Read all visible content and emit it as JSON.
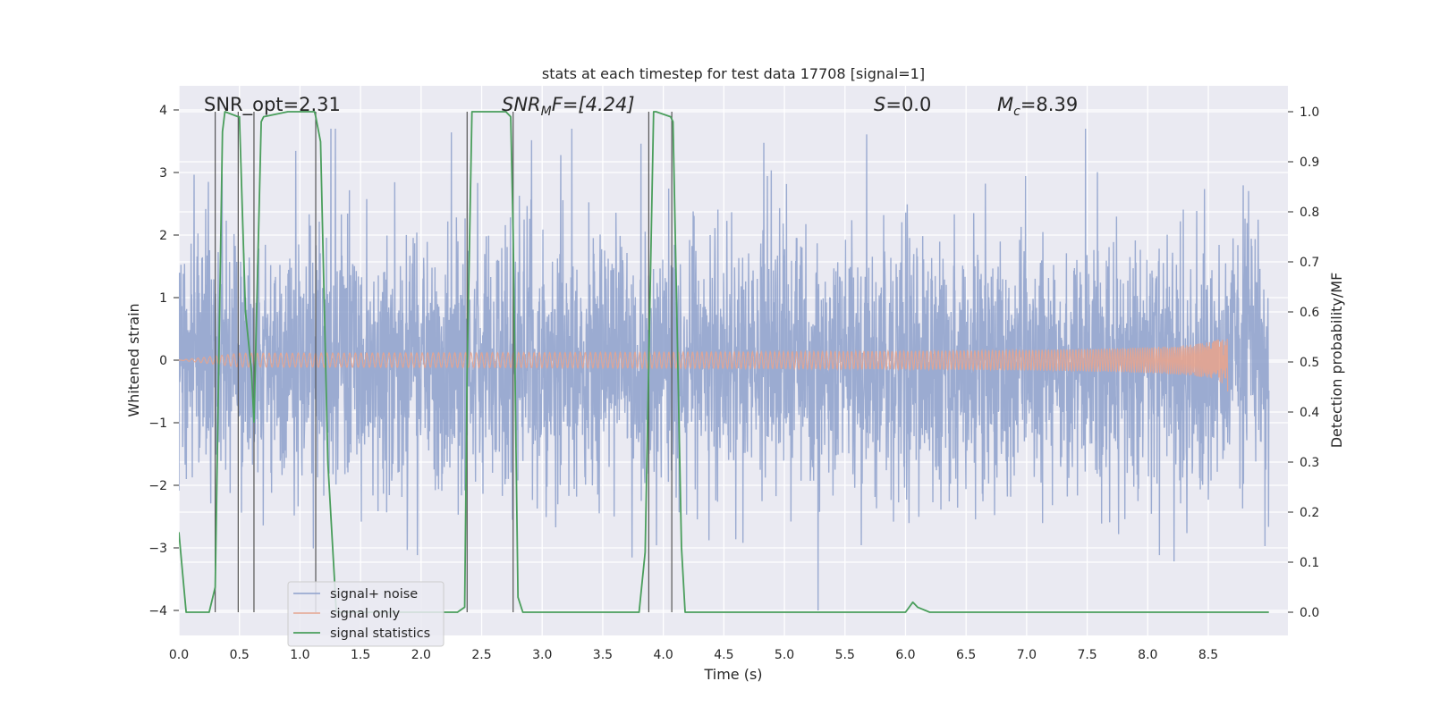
{
  "chart_data": {
    "type": "line",
    "title": "stats at each timestep for test data 17708 [signal=1]",
    "xlabel": "Time (s)",
    "ylabel": "Whitened strain",
    "ylabel_right": "Detection probability/MF",
    "xlim": [
      0,
      9.0
    ],
    "ylim": [
      -4.4,
      4.4
    ],
    "ylim_right": [
      -0.05,
      1.045
    ],
    "x_ticks": [
      "0.0",
      "0.5",
      "1.0",
      "1.5",
      "2.0",
      "2.5",
      "3.0",
      "3.5",
      "4.0",
      "4.5",
      "5.0",
      "5.5",
      "6.0",
      "6.5",
      "7.0",
      "7.5",
      "8.0",
      "8.5"
    ],
    "y_ticks": [
      "−4",
      "−3",
      "−2",
      "−1",
      "0",
      "1",
      "2",
      "3",
      "4"
    ],
    "y_ticks_right": [
      "0.0",
      "0.1",
      "0.2",
      "0.3",
      "0.4",
      "0.5",
      "0.6",
      "0.7",
      "0.8",
      "0.9",
      "1.0"
    ],
    "grid": true,
    "legend_position": "lower-left",
    "annotations": {
      "snr_opt": "SNR_opt=2.31",
      "snr_mf_base": "SNR",
      "snr_mf_sub": "M",
      "snr_mf_rest": "F=[4.24]",
      "s_base": "S",
      "s_rest": "=0.0",
      "mc_base": "M",
      "mc_sub": "c",
      "mc_rest": "=8.39"
    },
    "colors": {
      "noise": "#8da0cb",
      "signal": "#e5a48f",
      "statistics": "#4a9e5c",
      "markers": "#555555",
      "background": "#eaeaf2",
      "grid": "#ffffff"
    },
    "series": [
      {
        "name": "signal+ noise",
        "kind": "noise",
        "x_range": [
          0,
          9.0
        ],
        "amplitude_sigma": 1.0,
        "extreme_range": [
          -4.0,
          3.7
        ]
      },
      {
        "name": "signal only",
        "kind": "chirp",
        "x_range": [
          0,
          8.66
        ],
        "peak_amplitude": 0.42
      },
      {
        "name": "signal statistics",
        "kind": "line",
        "axis": "right",
        "x": [
          0.0,
          0.06,
          0.25,
          0.3,
          0.36,
          0.38,
          0.49,
          0.5,
          0.55,
          0.6,
          0.62,
          0.68,
          0.7,
          0.9,
          1.12,
          1.13,
          1.17,
          1.23,
          1.3,
          1.5,
          2.0,
          2.3,
          2.36,
          2.38,
          2.42,
          2.44,
          2.5,
          2.7,
          2.74,
          2.76,
          2.8,
          2.84,
          2.9,
          3.0,
          3.8,
          3.85,
          3.88,
          3.92,
          3.94,
          4.06,
          4.08,
          4.15,
          4.18,
          4.2,
          5.0,
          6.0,
          6.06,
          6.1,
          6.2,
          7.0,
          9.0
        ],
        "y": [
          0.16,
          0.0,
          0.0,
          0.05,
          0.96,
          1.0,
          0.99,
          0.99,
          0.6,
          0.48,
          0.38,
          0.98,
          0.99,
          1.0,
          1.0,
          0.99,
          0.94,
          0.3,
          0.0,
          0.0,
          0.0,
          0.0,
          0.01,
          0.48,
          1.0,
          1.0,
          1.0,
          1.0,
          0.99,
          0.76,
          0.03,
          0.0,
          0.0,
          0.0,
          0.0,
          0.12,
          0.5,
          1.0,
          1.0,
          0.99,
          0.98,
          0.13,
          0.0,
          0.0,
          0.0,
          0.0,
          0.02,
          0.01,
          0.0,
          0.0,
          0.0
        ]
      }
    ],
    "marker_lines": [
      0.3,
      0.49,
      0.62,
      1.13,
      2.38,
      2.76,
      3.88,
      4.07
    ]
  }
}
